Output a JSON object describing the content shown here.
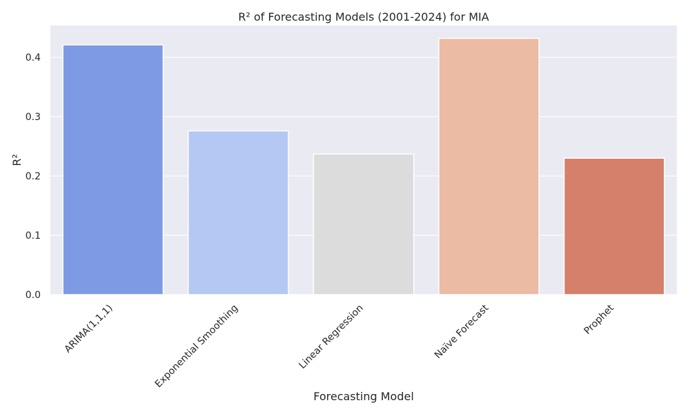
{
  "chart_data": {
    "type": "bar",
    "title": "R² of Forecasting Models (2001-2024) for MIA",
    "xlabel": "Forecasting Model",
    "ylabel": "R²",
    "categories": [
      "ARIMA(1,1,1)",
      "Exponential Smoothing",
      "Linear Regression",
      "Naïve Forecast",
      "Prophet"
    ],
    "values": [
      0.421,
      0.276,
      0.237,
      0.432,
      0.23
    ],
    "colors": [
      "#7f9ae4",
      "#b4c8f3",
      "#dcdcdc",
      "#ecbba4",
      "#d5806b"
    ],
    "ylim": [
      0,
      0.4536
    ],
    "yticks": [
      0.0,
      0.1,
      0.2,
      0.3,
      0.4
    ],
    "ytick_labels": [
      "0.0",
      "0.1",
      "0.2",
      "0.3",
      "0.4"
    ],
    "grid": true,
    "style": {
      "plot_background": "#eaeaf2",
      "grid_color": "#ffffff"
    }
  }
}
